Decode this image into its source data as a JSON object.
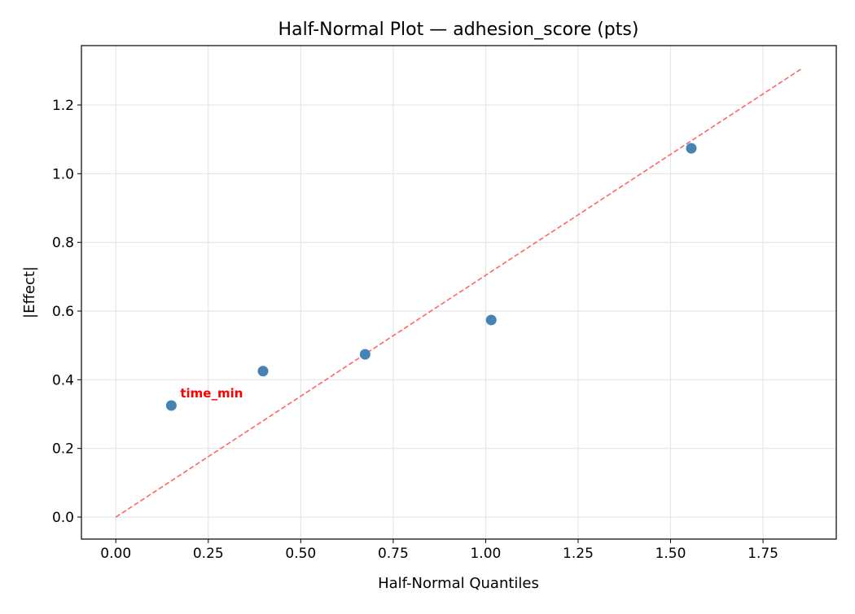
{
  "chart_data": {
    "type": "scatter",
    "title": "Half-Normal Plot — adhesion_score (pts)",
    "xlabel": "Half-Normal Quantiles",
    "ylabel": "|Effect|",
    "xlim": [
      -0.093,
      1.948
    ],
    "ylim": [
      -0.064,
      1.373
    ],
    "grid": true,
    "xticks": [
      0.0,
      0.25,
      0.5,
      0.75,
      1.0,
      1.25,
      1.5,
      1.75
    ],
    "xtick_labels": [
      "0.00",
      "0.25",
      "0.50",
      "0.75",
      "1.00",
      "1.25",
      "1.50",
      "1.75"
    ],
    "yticks": [
      0.0,
      0.2,
      0.4,
      0.6,
      0.8,
      1.0,
      1.2
    ],
    "ytick_labels": [
      "0.0",
      "0.2",
      "0.4",
      "0.6",
      "0.8",
      "1.0",
      "1.2"
    ],
    "points": [
      {
        "x": 0.15,
        "y": 0.325
      },
      {
        "x": 0.398,
        "y": 0.425
      },
      {
        "x": 0.674,
        "y": 0.474
      },
      {
        "x": 1.015,
        "y": 0.574
      },
      {
        "x": 1.556,
        "y": 1.074
      }
    ],
    "point_color": "#4682b4",
    "reference_line": {
      "x": [
        0,
        1.856
      ],
      "y": [
        0,
        1.307
      ],
      "color": "#ff6666",
      "style": "dashed"
    },
    "annotations": [
      {
        "text": "time_min",
        "x": 0.15,
        "y": 0.325,
        "color": "#ff0000"
      }
    ]
  }
}
